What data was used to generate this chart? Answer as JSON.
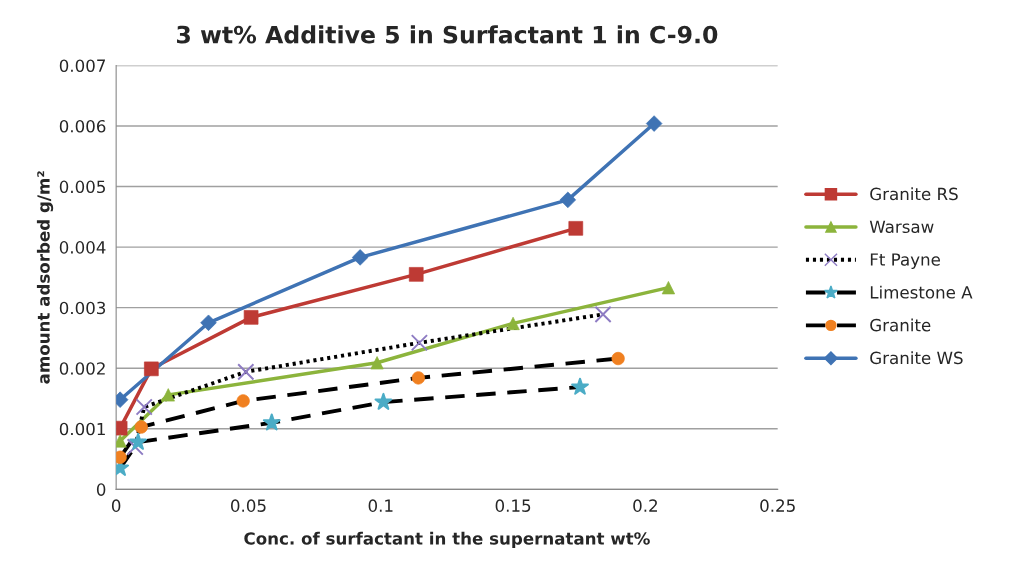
{
  "chart_data": {
    "type": "line",
    "title": "3 wt% Additive 5 in Surfactant 1 in C-9.0",
    "xlabel": "Conc. of surfactant in the supernatant wt%",
    "ylabel": "amount adsorbed g/m²",
    "xlim": [
      0,
      0.25
    ],
    "xticks": [
      0,
      0.05,
      0.1,
      0.15,
      0.2,
      0.25
    ],
    "ylim": [
      0,
      0.007
    ],
    "yticks": [
      0,
      0.001,
      0.002,
      0.003,
      0.004,
      0.005,
      0.006,
      0.007
    ],
    "grid": "y",
    "legend": "right",
    "series": [
      {
        "name": "Granite RS",
        "color": "#be3a34",
        "marker": "square",
        "line_style": "solid",
        "x": [
          0.0015,
          0.0133,
          0.051,
          0.1134,
          0.1737
        ],
        "values": [
          0.00101,
          0.00199,
          0.00284,
          0.00355,
          0.00431
        ]
      },
      {
        "name": "Warsaw",
        "color": "#8cb43c",
        "marker": "triangle",
        "line_style": "solid",
        "x": [
          0.0015,
          0.0197,
          0.0986,
          0.15,
          0.2087
        ],
        "values": [
          0.0008,
          0.00156,
          0.00209,
          0.00274,
          0.00333
        ]
      },
      {
        "name": "Ft Payne",
        "color": "#000000",
        "colors": [
          "#8e7cc3",
          "#8e7cc3",
          "#8e7cc3",
          "#8e7cc3",
          "#8e7cc3"
        ],
        "marker": "cross",
        "line_style": "dotted",
        "x": [
          0.0072,
          0.0106,
          0.049,
          0.1146,
          0.184
        ],
        "values": [
          0.0007,
          0.00136,
          0.00194,
          0.00242,
          0.00289
        ]
      },
      {
        "name": "Limestone A",
        "color": "#000000",
        "colors": [
          "#4bacc6",
          "#4bacc6",
          "#4bacc6",
          "#4bacc6",
          "#4bacc6"
        ],
        "marker": "star",
        "line_style": "dashed",
        "x": [
          0.0015,
          0.0083,
          0.0588,
          0.101,
          0.1753
        ],
        "values": [
          0.00035,
          0.00078,
          0.0011,
          0.00144,
          0.00169
        ]
      },
      {
        "name": "Granite",
        "color": "#000000",
        "colors": [
          "#f08020",
          "#f08020",
          "#f08020",
          "#f08020",
          "#f08020"
        ],
        "marker": "circle",
        "line_style": "dashed",
        "x": [
          0.0015,
          0.0095,
          0.048,
          0.1142,
          0.1897
        ],
        "values": [
          0.00053,
          0.00103,
          0.00146,
          0.00184,
          0.00216
        ]
      },
      {
        "name": "Granite WS",
        "color": "#3f73b4",
        "marker": "diamond",
        "line_style": "solid",
        "x": [
          0.0015,
          0.0349,
          0.0922,
          0.1707,
          0.2033
        ],
        "values": [
          0.00148,
          0.00275,
          0.00383,
          0.00478,
          0.00604
        ]
      }
    ]
  }
}
